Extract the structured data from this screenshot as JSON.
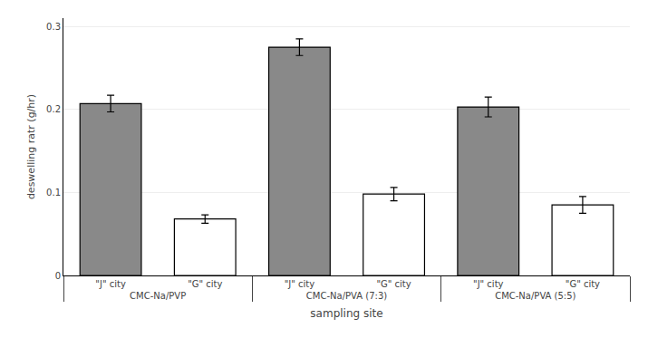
{
  "chart_data": {
    "type": "bar",
    "categories": [
      "CMC-Na/PVP",
      "CMC-Na/PVA (7:3)",
      "CMC-Na/PVA (5:5)"
    ],
    "series": [
      {
        "name": "\"J\" city",
        "color": "#898989",
        "values": [
          0.207,
          0.275,
          0.203
        ],
        "errors": [
          0.01,
          0.01,
          0.012
        ]
      },
      {
        "name": "\"G\" city",
        "color": "#ffffff",
        "values": [
          0.068,
          0.098,
          0.085
        ],
        "errors": [
          0.005,
          0.008,
          0.01
        ]
      }
    ],
    "xlabel": "sampling site",
    "ylabel": "deswelling ratr (g/hr)",
    "ylim": [
      0,
      0.31
    ],
    "yticks": [
      0,
      0.1,
      0.2,
      0.3
    ]
  }
}
